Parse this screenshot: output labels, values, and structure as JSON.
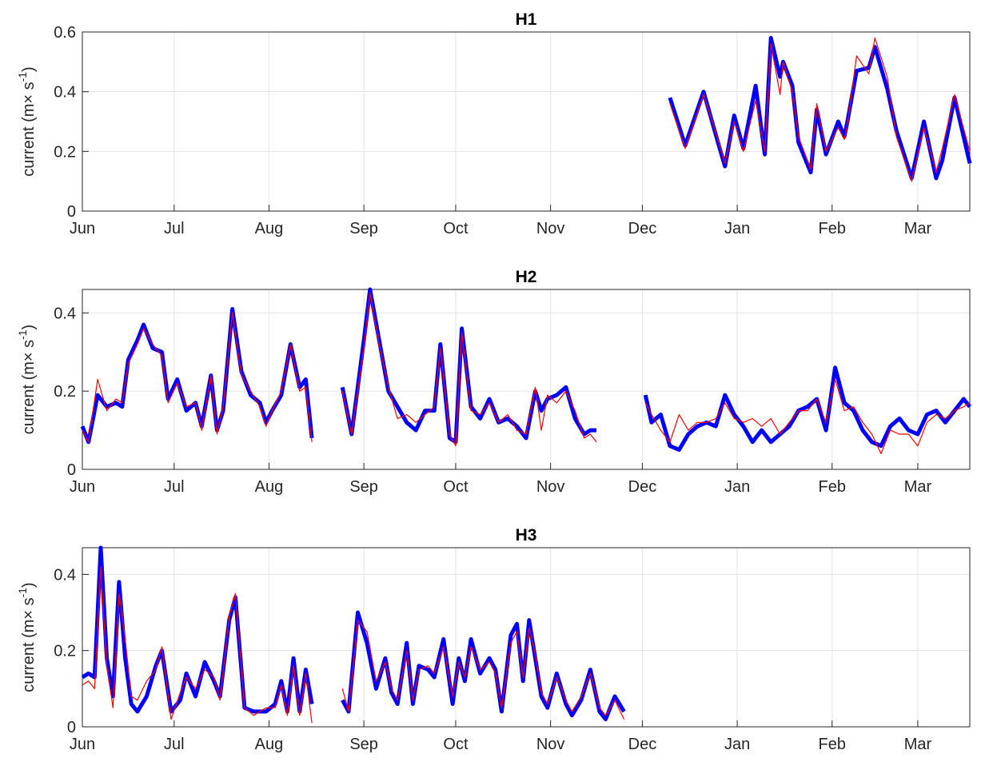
{
  "chart_data": [
    {
      "type": "line",
      "title": "H1",
      "ylabel": "current  (m× s",
      "ylabel_sup": "-1",
      "ylabel_end": ")",
      "x": [
        192,
        197,
        203,
        208,
        210,
        213,
        216,
        220,
        223,
        225,
        228,
        229,
        232,
        234,
        238,
        240,
        243,
        247,
        249,
        250,
        253,
        257,
        259,
        263,
        266,
        271,
        275,
        279,
        281,
        285,
        290
      ],
      "series": [
        {
          "color": "#0000ff",
          "values": [
            0.38,
            0.22,
            0.4,
            0.22,
            0.15,
            0.32,
            0.21,
            0.42,
            0.19,
            0.58,
            0.45,
            0.5,
            0.42,
            0.23,
            0.13,
            0.34,
            0.19,
            0.3,
            0.25,
            0.3,
            0.47,
            0.48,
            0.55,
            0.41,
            0.27,
            0.11,
            0.3,
            0.11,
            0.17,
            0.38,
            0.16
          ]
        },
        {
          "color": "#ff0000",
          "values": [
            0.36,
            0.21,
            0.39,
            0.23,
            0.16,
            0.3,
            0.2,
            0.37,
            0.2,
            0.56,
            0.39,
            0.5,
            0.4,
            0.25,
            0.14,
            0.36,
            0.2,
            0.28,
            0.24,
            0.29,
            0.52,
            0.46,
            0.58,
            0.45,
            0.25,
            0.1,
            0.28,
            0.13,
            0.21,
            0.39,
            0.2
          ]
        }
      ],
      "xlim": [
        0,
        290
      ],
      "xticks": [
        {
          "value": 0,
          "label": "Jun"
        },
        {
          "value": 30,
          "label": "Jul"
        },
        {
          "value": 61,
          "label": "Aug"
        },
        {
          "value": 92,
          "label": "Sep"
        },
        {
          "value": 122,
          "label": "Oct"
        },
        {
          "value": 153,
          "label": "Nov"
        },
        {
          "value": 183,
          "label": "Dec"
        },
        {
          "value": 214,
          "label": "Jan"
        },
        {
          "value": 245,
          "label": "Feb"
        },
        {
          "value": 273,
          "label": "Mar"
        }
      ],
      "ylim": [
        0,
        0.6
      ],
      "yticks": [
        0,
        0.2,
        0.4,
        0.6
      ],
      "grid": true
    },
    {
      "type": "line",
      "title": "H2",
      "ylabel": "current  (m× s",
      "ylabel_sup": "-1",
      "ylabel_end": ")",
      "x": [
        0,
        2,
        5,
        8,
        11,
        13,
        15,
        18,
        20,
        23,
        26,
        28,
        31,
        34,
        37,
        39,
        42,
        44,
        46,
        49,
        52,
        55,
        58,
        60,
        62,
        65,
        68,
        71,
        73,
        75,
        80,
        85,
        88,
        92,
        94,
        97,
        100,
        103,
        106,
        109,
        112,
        115,
        117,
        120,
        122,
        124,
        127,
        130,
        133,
        136,
        139,
        142,
        145,
        148,
        150,
        152,
        155,
        158,
        161,
        164,
        166,
        168,
        176,
        184,
        186,
        189,
        192,
        195,
        198,
        201,
        204,
        207,
        210,
        213,
        216,
        219,
        222,
        225,
        228,
        231,
        234,
        237,
        240,
        243,
        246,
        249,
        252,
        255,
        258,
        261,
        264,
        267,
        270,
        273,
        276,
        279,
        282,
        285,
        288,
        290
      ],
      "series": [
        {
          "color": "#0000ff",
          "values": [
            0.11,
            0.07,
            0.19,
            0.16,
            0.17,
            0.16,
            0.28,
            0.33,
            0.37,
            0.31,
            0.3,
            0.18,
            0.23,
            0.15,
            0.17,
            0.11,
            0.24,
            0.1,
            0.15,
            0.41,
            0.25,
            0.19,
            0.17,
            0.12,
            0.15,
            0.19,
            0.32,
            0.21,
            0.23,
            0.08,
            null,
            0.21,
            0.09,
            0.33,
            0.46,
            0.33,
            0.2,
            0.16,
            0.12,
            0.1,
            0.15,
            0.15,
            0.32,
            0.08,
            0.07,
            0.36,
            0.16,
            0.13,
            0.18,
            0.12,
            0.13,
            0.11,
            0.08,
            0.2,
            0.15,
            0.18,
            0.19,
            0.21,
            0.13,
            0.09,
            0.1,
            0.1,
            null,
            0.19,
            0.12,
            0.14,
            0.06,
            0.05,
            0.09,
            0.11,
            0.12,
            0.11,
            0.19,
            0.14,
            0.11,
            0.07,
            0.1,
            0.07,
            0.09,
            0.11,
            0.15,
            0.16,
            0.18,
            0.1,
            0.26,
            0.17,
            0.15,
            0.1,
            0.07,
            0.06,
            0.11,
            0.13,
            0.1,
            0.09,
            0.14,
            0.15,
            0.12,
            0.15,
            0.18,
            0.16
          ]
        },
        {
          "color": "#ff0000",
          "values": [
            0.1,
            0.07,
            0.23,
            0.15,
            0.18,
            0.17,
            0.27,
            0.32,
            0.36,
            0.32,
            0.29,
            0.17,
            0.22,
            0.16,
            0.17,
            0.1,
            0.24,
            0.09,
            0.16,
            0.4,
            0.24,
            0.2,
            0.16,
            0.11,
            0.15,
            0.2,
            0.32,
            0.2,
            0.21,
            0.07,
            null,
            0.2,
            0.09,
            0.31,
            0.45,
            0.32,
            0.21,
            0.13,
            0.14,
            0.12,
            0.14,
            0.16,
            0.31,
            0.09,
            0.06,
            0.35,
            0.15,
            0.14,
            0.17,
            0.12,
            0.14,
            0.1,
            0.09,
            0.21,
            0.1,
            0.19,
            0.17,
            0.2,
            0.15,
            0.08,
            0.09,
            0.07,
            null,
            0.17,
            0.14,
            0.1,
            0.07,
            0.14,
            0.1,
            0.12,
            0.12,
            0.13,
            0.17,
            0.13,
            0.12,
            0.13,
            0.11,
            0.13,
            0.09,
            0.12,
            0.15,
            0.15,
            0.18,
            0.12,
            0.23,
            0.15,
            0.16,
            0.12,
            0.09,
            0.04,
            0.1,
            0.09,
            0.09,
            0.06,
            0.12,
            0.14,
            0.13,
            0.15,
            0.16,
            0.17
          ]
        }
      ],
      "xlim": [
        0,
        290
      ],
      "xticks": [
        {
          "value": 0,
          "label": "Jun"
        },
        {
          "value": 30,
          "label": "Jul"
        },
        {
          "value": 61,
          "label": "Aug"
        },
        {
          "value": 92,
          "label": "Sep"
        },
        {
          "value": 122,
          "label": "Oct"
        },
        {
          "value": 153,
          "label": "Nov"
        },
        {
          "value": 183,
          "label": "Dec"
        },
        {
          "value": 214,
          "label": "Jan"
        },
        {
          "value": 245,
          "label": "Feb"
        },
        {
          "value": 273,
          "label": "Mar"
        }
      ],
      "ylim": [
        0,
        0.46
      ],
      "yticks": [
        0,
        0.2,
        0.4
      ],
      "grid": true
    },
    {
      "type": "line",
      "title": "H3",
      "ylabel": "current  (m× s",
      "ylabel_sup": "-1",
      "ylabel_end": ")",
      "x": [
        0,
        2,
        4,
        6,
        8,
        10,
        12,
        14,
        16,
        18,
        21,
        24,
        26,
        29,
        32,
        34,
        37,
        40,
        43,
        45,
        48,
        50,
        53,
        56,
        60,
        63,
        65,
        67,
        69,
        71,
        73,
        75,
        80,
        85,
        87,
        90,
        93,
        96,
        99,
        101,
        103,
        106,
        108,
        110,
        113,
        115,
        118,
        121,
        123,
        125,
        127,
        130,
        133,
        135,
        137,
        140,
        142,
        144,
        146,
        148,
        150,
        152,
        155,
        158,
        160,
        163,
        166,
        169,
        171,
        174,
        177
      ],
      "series": [
        {
          "color": "#0000ff",
          "values": [
            0.13,
            0.14,
            0.13,
            0.47,
            0.18,
            0.08,
            0.38,
            0.18,
            0.06,
            0.04,
            0.08,
            0.16,
            0.2,
            0.04,
            0.07,
            0.14,
            0.08,
            0.17,
            0.12,
            0.08,
            0.28,
            0.34,
            0.05,
            0.04,
            0.04,
            0.06,
            0.12,
            0.04,
            0.18,
            0.04,
            0.15,
            0.06,
            null,
            0.07,
            0.04,
            0.3,
            0.22,
            0.1,
            0.18,
            0.09,
            0.06,
            0.22,
            0.06,
            0.16,
            0.15,
            0.13,
            0.23,
            0.06,
            0.18,
            0.12,
            0.23,
            0.14,
            0.18,
            0.15,
            0.04,
            0.24,
            0.27,
            0.12,
            0.28,
            0.18,
            0.08,
            0.05,
            0.14,
            0.06,
            0.03,
            0.07,
            0.15,
            0.04,
            0.02,
            0.08,
            0.04
          ]
        },
        {
          "color": "#ff0000",
          "values": [
            0.11,
            0.12,
            0.1,
            0.42,
            0.16,
            0.05,
            0.35,
            0.23,
            0.08,
            0.07,
            0.12,
            0.15,
            0.21,
            0.02,
            0.09,
            0.13,
            0.1,
            0.15,
            0.13,
            0.07,
            0.29,
            0.35,
            0.05,
            0.03,
            0.05,
            0.05,
            0.11,
            0.03,
            0.16,
            0.03,
            0.14,
            0.01,
            null,
            0.1,
            0.04,
            0.28,
            0.25,
            0.12,
            0.17,
            0.1,
            0.07,
            0.2,
            0.07,
            0.15,
            0.16,
            0.14,
            0.21,
            0.08,
            0.17,
            0.13,
            0.21,
            0.15,
            0.17,
            0.14,
            0.05,
            0.22,
            0.25,
            0.13,
            0.26,
            0.19,
            0.09,
            0.06,
            0.13,
            0.07,
            0.04,
            0.08,
            0.14,
            0.05,
            0.03,
            0.07,
            0.02
          ]
        }
      ],
      "xlim": [
        0,
        290
      ],
      "xticks": [
        {
          "value": 0,
          "label": "Jun"
        },
        {
          "value": 30,
          "label": "Jul"
        },
        {
          "value": 61,
          "label": "Aug"
        },
        {
          "value": 92,
          "label": "Sep"
        },
        {
          "value": 122,
          "label": "Oct"
        },
        {
          "value": 153,
          "label": "Nov"
        },
        {
          "value": 183,
          "label": "Dec"
        },
        {
          "value": 214,
          "label": "Jan"
        },
        {
          "value": 245,
          "label": "Feb"
        },
        {
          "value": 273,
          "label": "Mar"
        }
      ],
      "ylim": [
        0,
        0.47
      ],
      "yticks": [
        0,
        0.2,
        0.4
      ],
      "grid": true
    }
  ]
}
